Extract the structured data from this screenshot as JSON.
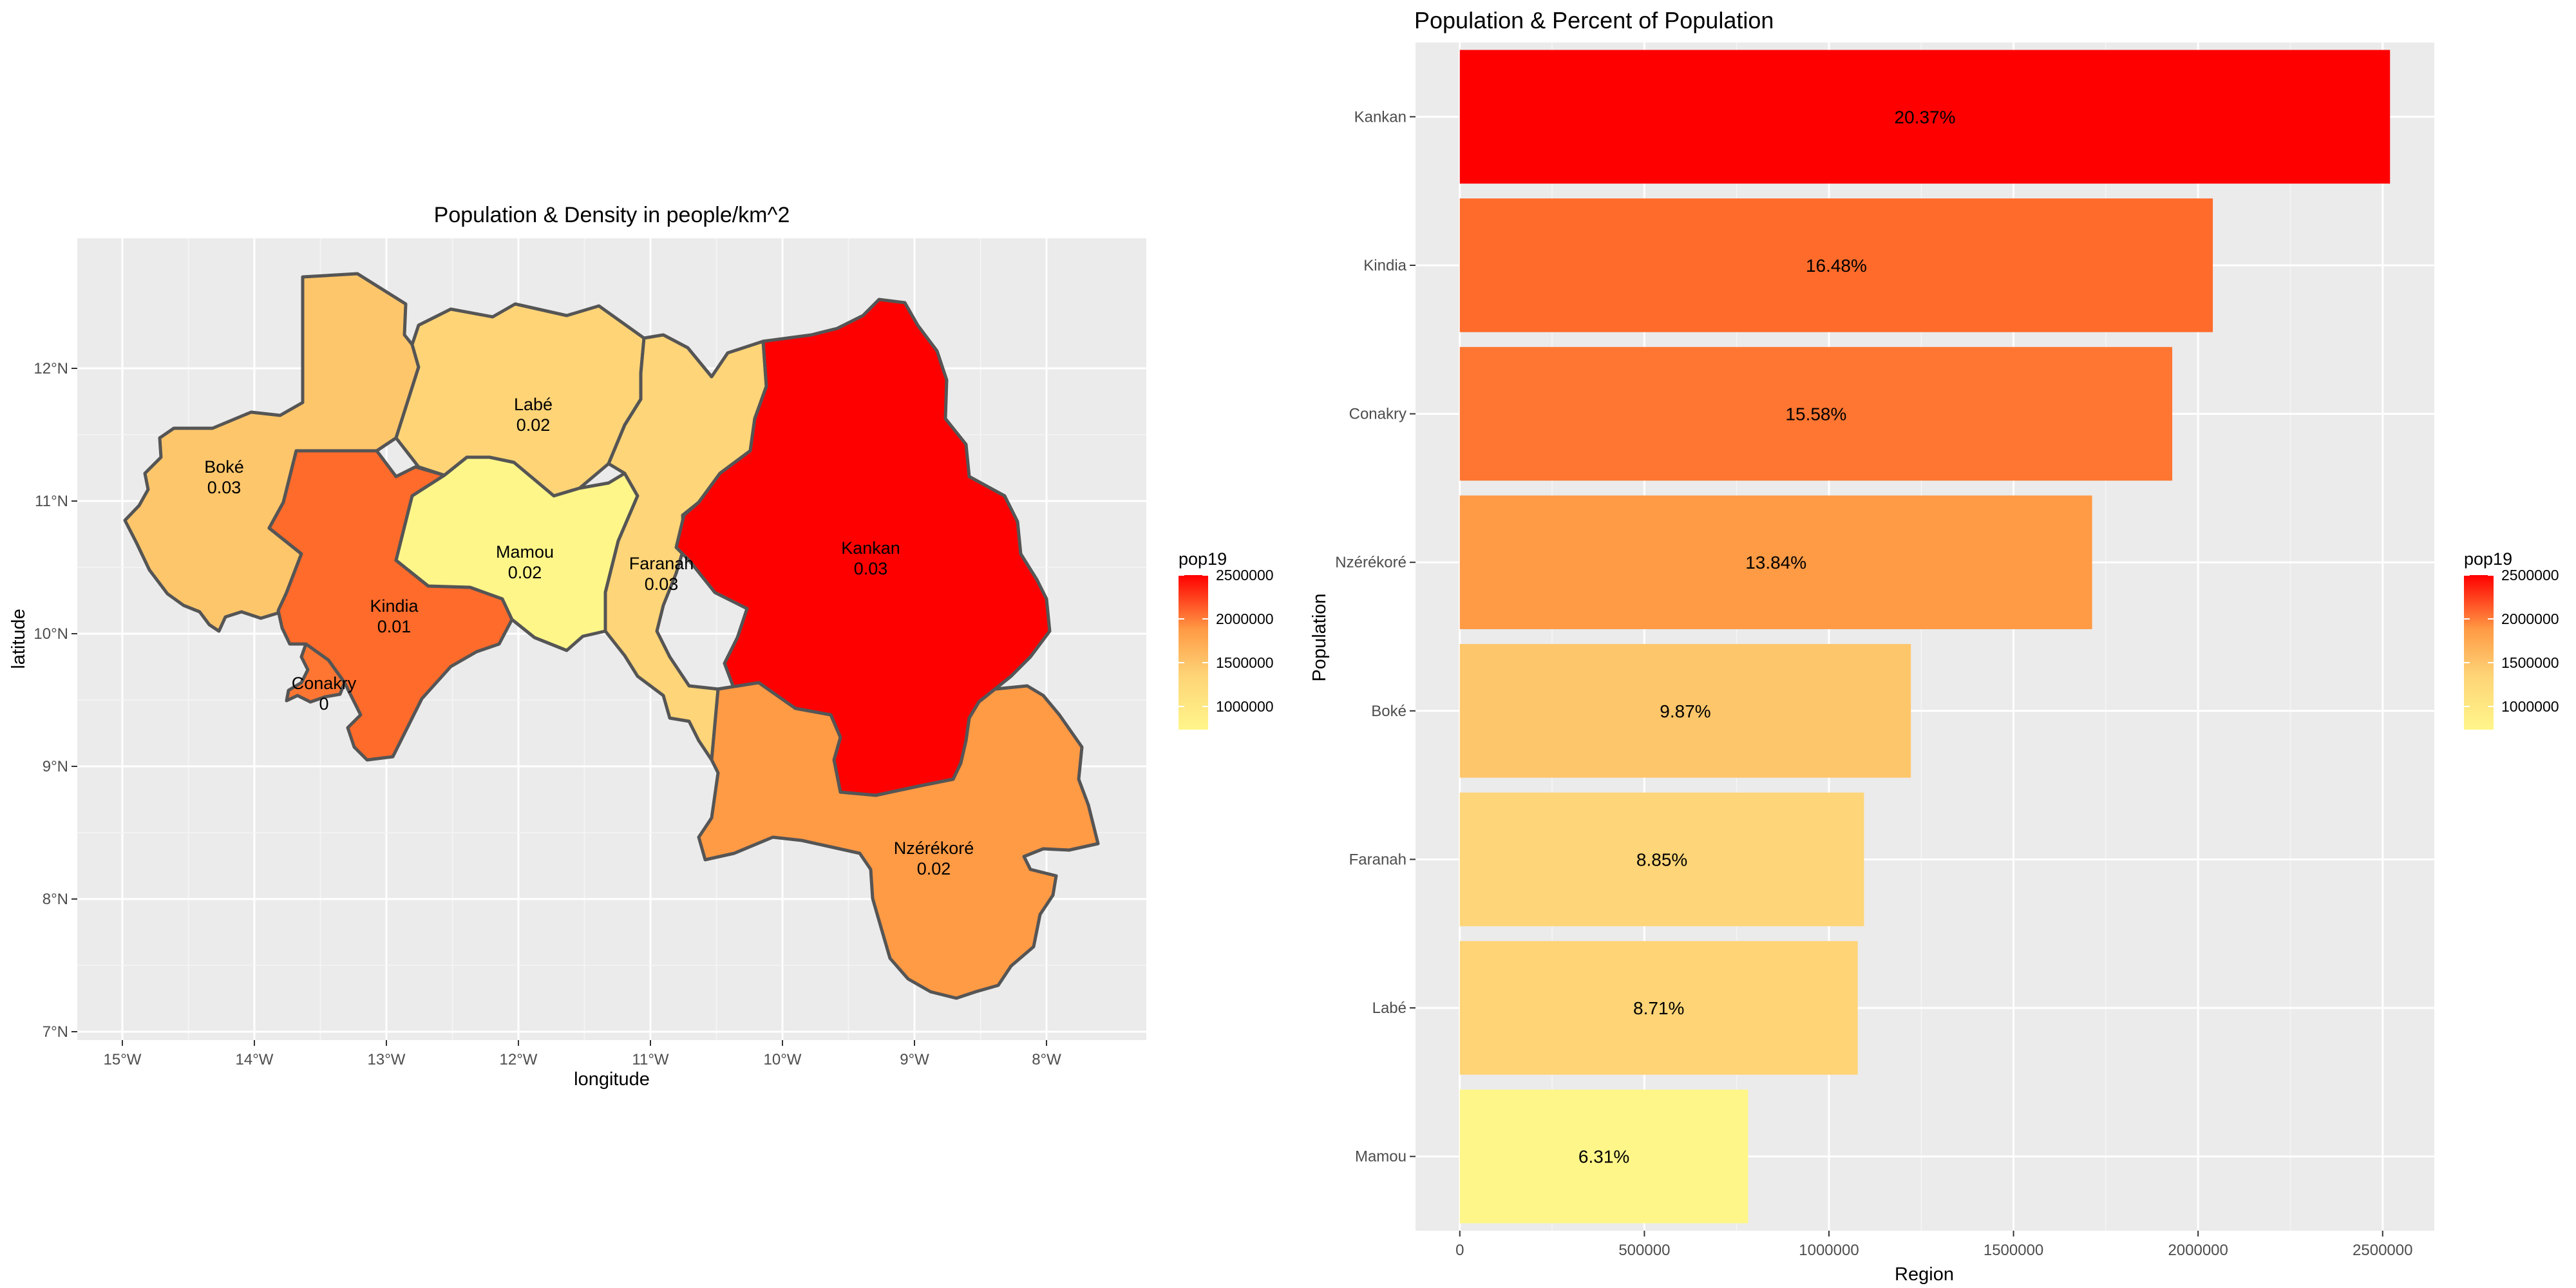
{
  "map_panel": {
    "title": "Population & Density in people/km^2",
    "xlabel": "longitude",
    "ylabel": "latitude",
    "x_ticks": [
      "15°W",
      "14°W",
      "13°W",
      "12°W",
      "11°W",
      "10°W",
      "9°W",
      "8°W"
    ],
    "y_ticks": [
      "7°N",
      "8°N",
      "9°N",
      "10°N",
      "11°N",
      "12°N"
    ],
    "regions": [
      {
        "name": "Boké",
        "density": "0.03",
        "color": "#FEC66B"
      },
      {
        "name": "Labé",
        "density": "0.02",
        "color": "#FED477"
      },
      {
        "name": "Kindia",
        "density": "0.01",
        "color": "#FF6B2B"
      },
      {
        "name": "Conakry",
        "density": "0",
        "color": "#FF7632"
      },
      {
        "name": "Mamou",
        "density": "0.02",
        "color": "#FFF68A"
      },
      {
        "name": "Faranah",
        "density": "0.03",
        "color": "#FED578"
      },
      {
        "name": "Kankan",
        "density": "0.03",
        "color": "#FF0000"
      },
      {
        "name": "Nzérékoré",
        "density": "0.02",
        "color": "#FF9A45"
      }
    ],
    "legend": {
      "title": "pop19",
      "ticks": [
        "2500000",
        "2000000",
        "1500000",
        "1000000"
      ]
    }
  },
  "chart_data": {
    "type": "bar",
    "orientation": "horizontal",
    "title": "Population & Percent of Population",
    "xlabel": "Region",
    "ylabel": "Population",
    "categories": [
      "Kankan",
      "Kindia",
      "Conakry",
      "Nzérékoré",
      "Boké",
      "Faranah",
      "Labé",
      "Mamou"
    ],
    "values": [
      2520000,
      2040000,
      1930000,
      1713000,
      1222000,
      1095000,
      1078000,
      781000
    ],
    "labels": [
      "20.37%",
      "16.48%",
      "15.58%",
      "13.84%",
      "9.87%",
      "8.85%",
      "8.71%",
      "6.31%"
    ],
    "colors": [
      "#FF0000",
      "#FF6B2B",
      "#FF7632",
      "#FF9A45",
      "#FEC66B",
      "#FED578",
      "#FED477",
      "#FFF68A"
    ],
    "xlim": [
      -120000,
      2640000
    ],
    "x_ticks": [
      0,
      500000,
      1000000,
      1500000,
      2000000,
      2500000
    ],
    "grid": true,
    "legend": {
      "title": "pop19",
      "ticks": [
        "2500000",
        "2000000",
        "1500000",
        "1000000"
      ],
      "position": "right"
    }
  }
}
